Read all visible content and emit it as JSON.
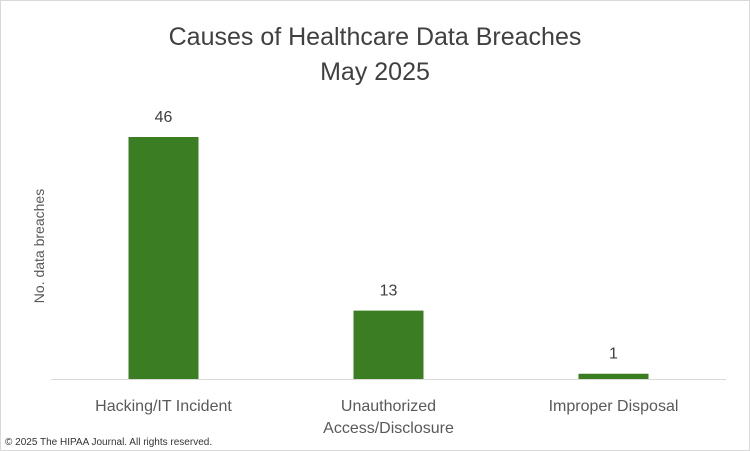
{
  "chart_data": {
    "type": "bar",
    "title": "Causes of Healthcare Data Breaches",
    "subtitle": "May 2025",
    "xlabel": "",
    "ylabel": "No. data breaches",
    "categories": [
      "Hacking/IT Incident",
      "Unauthorized Access/Disclosure",
      "Improper Disposal"
    ],
    "category_lines": [
      [
        "Hacking/IT Incident"
      ],
      [
        "Unauthorized",
        "Access/Disclosure"
      ],
      [
        "Improper Disposal"
      ]
    ],
    "values": [
      46,
      13,
      1
    ],
    "data_labels": [
      "46",
      "13",
      "1"
    ],
    "ylim": [
      0,
      46
    ],
    "grid": false,
    "bar_color": "#3b7d23"
  },
  "footer": {
    "copyright": "© 2025 The HIPAA Journal. All rights reserved."
  }
}
